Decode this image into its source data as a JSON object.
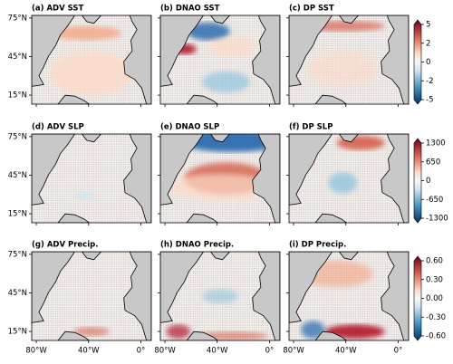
{
  "figure": {
    "panels": [
      {
        "title": "(a) ADV SST"
      },
      {
        "title": "(b) DNAO SST"
      },
      {
        "title": "(c) DP SST"
      },
      {
        "title": "(d) ADV SLP"
      },
      {
        "title": "(e) DNAO SLP"
      },
      {
        "title": "(f) DP SLP"
      },
      {
        "title": "(g) ADV Precip."
      },
      {
        "title": "(h) DNAO Precip."
      },
      {
        "title": "(i) DP Precip."
      }
    ],
    "xlim": [
      -83.5,
      8
    ],
    "ylim": [
      8,
      77
    ],
    "xticks": [
      {
        "value": -80,
        "label": "80°W"
      },
      {
        "value": -40,
        "label": "40°W"
      },
      {
        "value": 0,
        "label": "0°"
      }
    ],
    "yticks": [
      {
        "value": 75,
        "label": "75°N"
      },
      {
        "value": 45,
        "label": "45°N"
      },
      {
        "value": 15,
        "label": "15°N"
      }
    ],
    "colorbars": [
      {
        "ticks": [
          5,
          2,
          0,
          -2,
          -5
        ]
      },
      {
        "ticks": [
          1300,
          650,
          0,
          -650,
          -1300
        ]
      },
      {
        "ticks": [
          {
            "value": 0.6,
            "label": "0.60"
          },
          {
            "value": 0.3,
            "label": "0.30"
          },
          {
            "value": 0,
            "label": "0.00"
          },
          {
            "value": -0.3,
            "label": "-0.30"
          },
          {
            "value": -0.6,
            "label": "-0.60"
          }
        ]
      }
    ]
  }
}
